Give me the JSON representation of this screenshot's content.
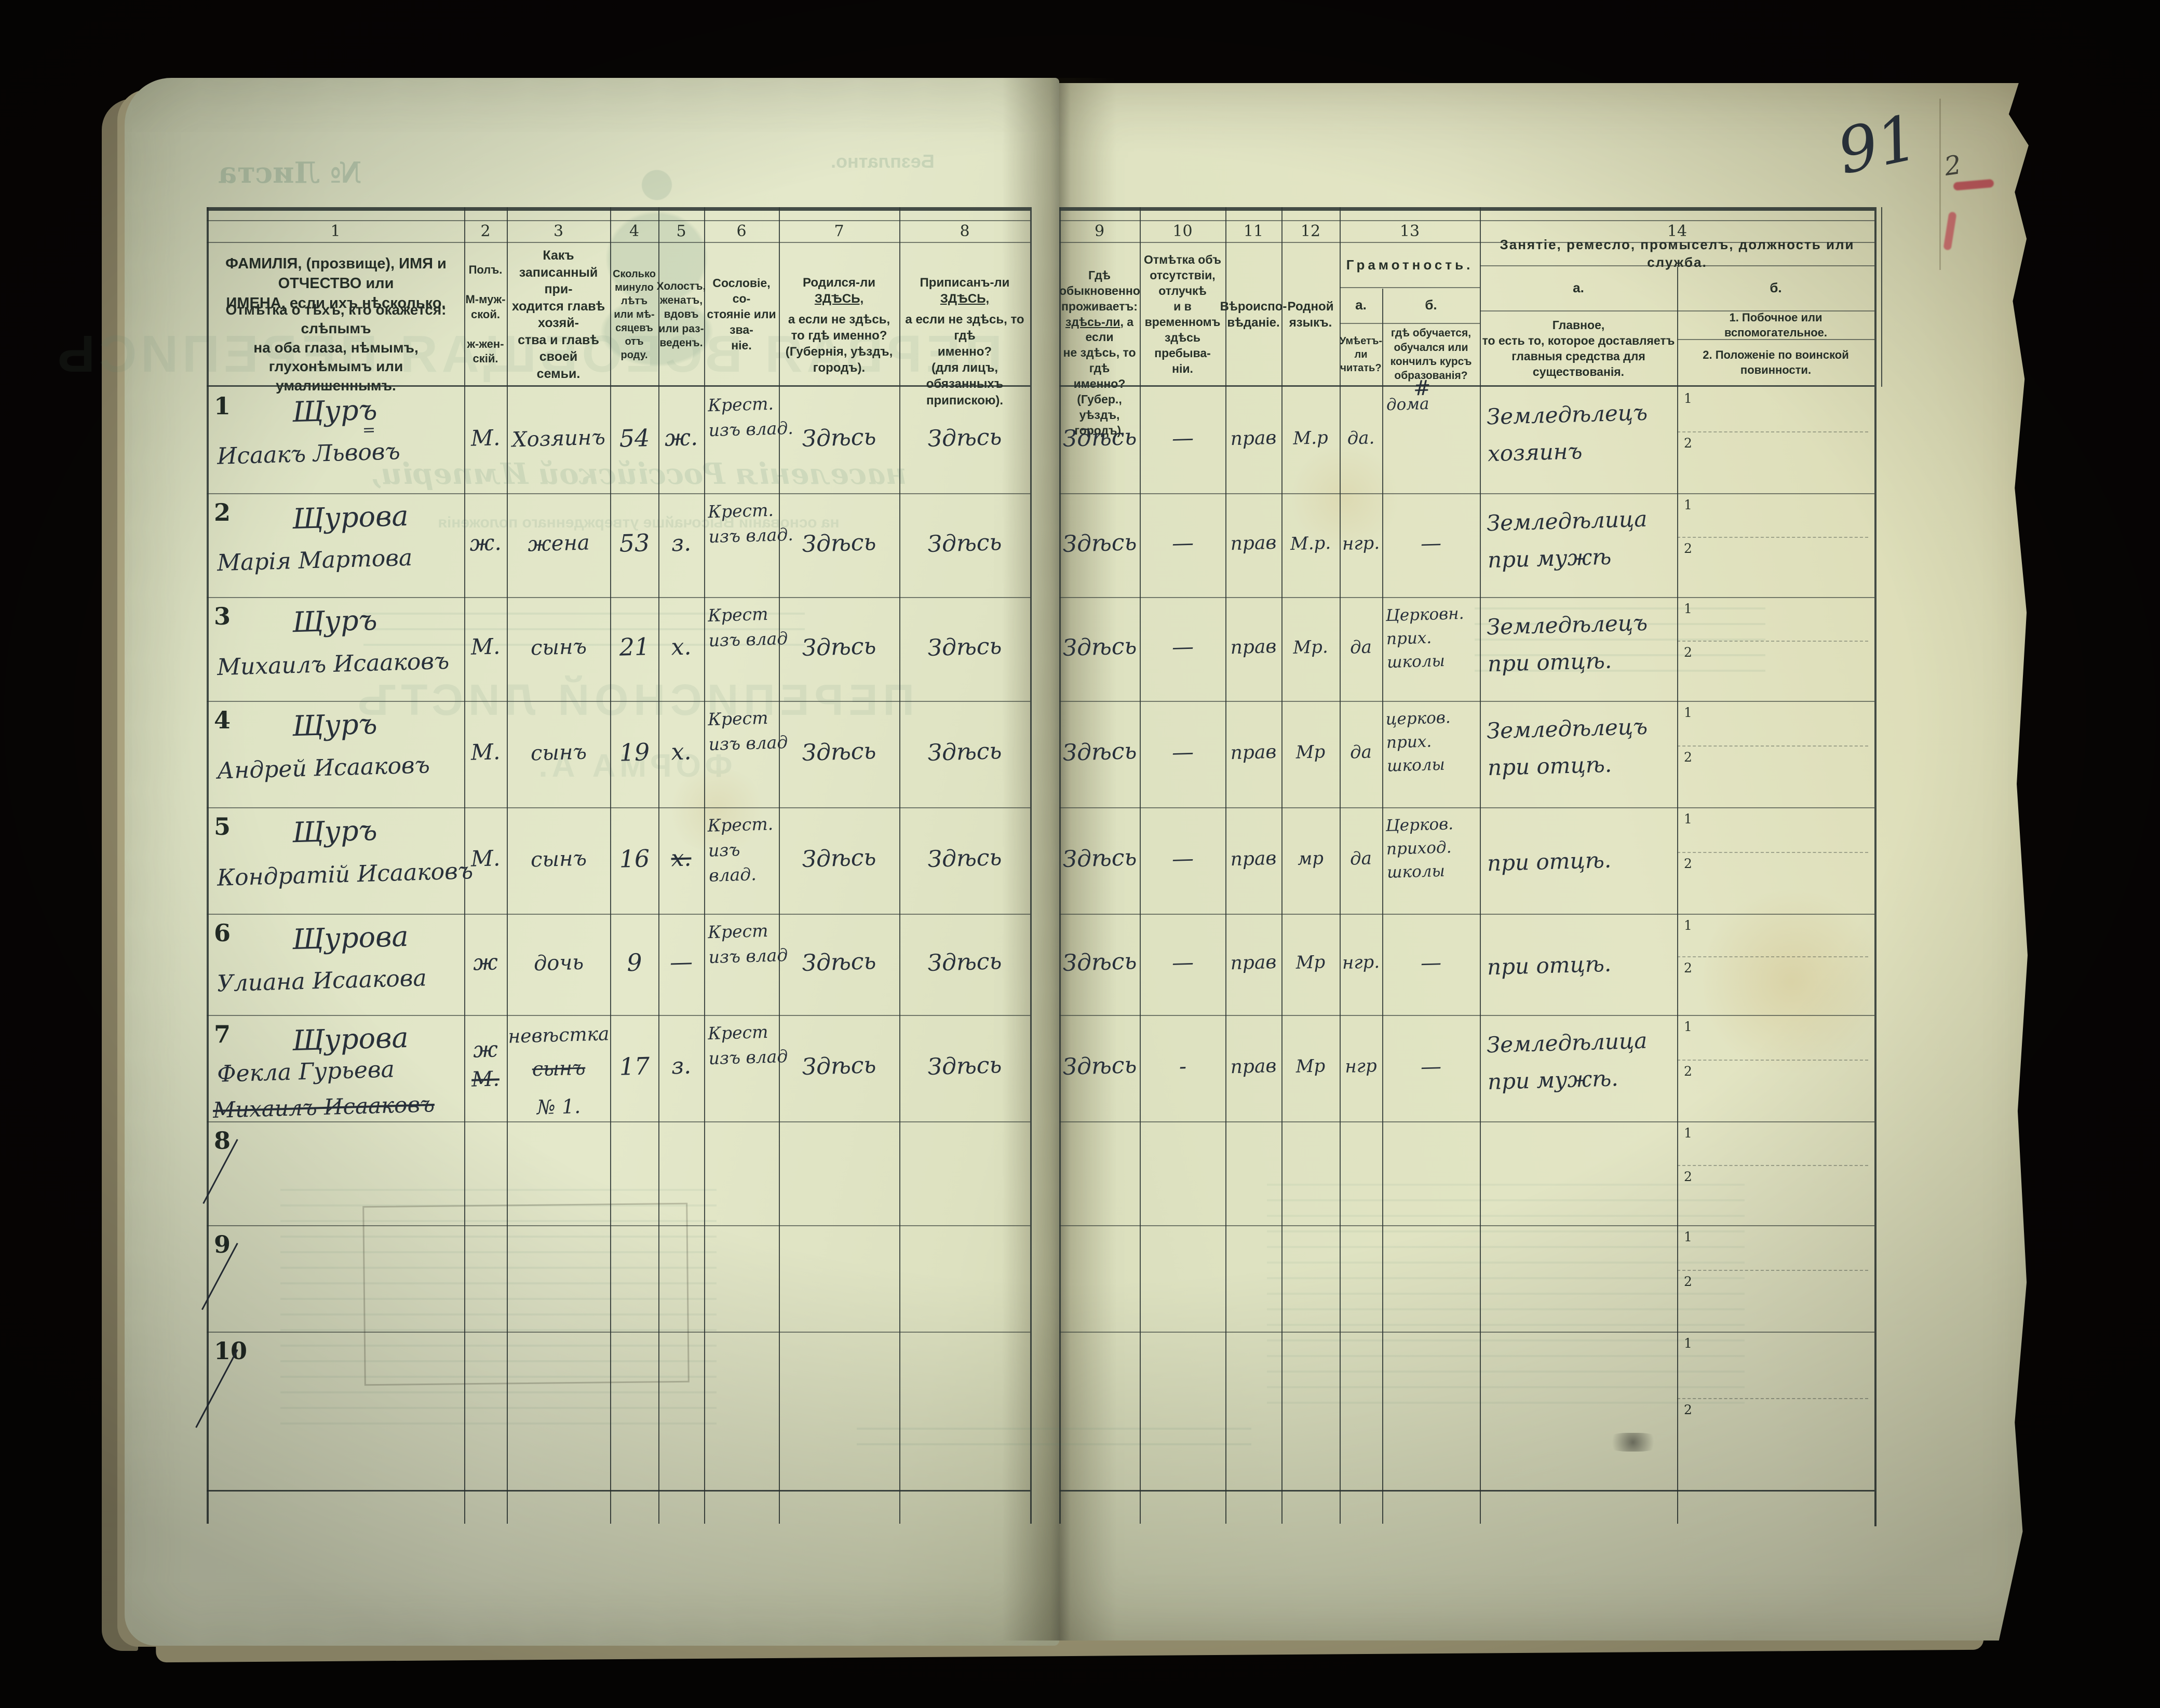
{
  "page": {
    "number": "91",
    "corner_pencil_note": "2"
  },
  "bleedthrough": {
    "sheet_no": "№ Листа",
    "free_of_charge": "Безплатно.",
    "title_big": "ПЕРВАЯ ВСЕОБЩАЯ ПЕРЕПИСЬ",
    "subtitle": "населенія Россійской Имперіи,",
    "subtitle2": "на основаніи Высочайше утвержденнаго положенія",
    "list_title": "ПЕРЕПИСНОЙ ЛИСТЪ",
    "forma": "ФОРМА А."
  },
  "table": {
    "col_numbers": [
      "1",
      "2",
      "3",
      "4",
      "5",
      "6",
      "7",
      "8",
      "9",
      "10",
      "11",
      "12",
      "13",
      "14"
    ],
    "headers": {
      "name_main": "ФАМИЛІЯ, (прозвище), ИМЯ и ОТЧЕСТВО или\nИМЕНА, если ихъ нѣсколько.",
      "name_note": "Отмѣтка о тѣхъ, кто окажется: слѣпымъ\nна оба глаза, нѣмымъ, глухонѣмымъ или\nумалишеннымъ.",
      "sex": "Полъ.\n\nМ-муж-\nской.\n\nж-жен-\nскій.",
      "relation": "Какъ записанный при-\nходится главѣ хозяй-\nства и главѣ своей\nсемьи.",
      "age": "Сколько\nминуло\nлѣтъ\nили мѣ-\nсяцевъ\nотъ роду.",
      "marital": "Холостъ,\nженатъ,\nвдовъ\nили раз-\nведенъ.",
      "estate": "Сословіе, со-\nстояніе или зва-\nніе.",
      "born_pre": "Родился-ли ",
      "born_emph": "ЗДѢСЬ,",
      "born_rest": "а если не здѣсь,\nто гдѣ именно?\n(Губернія, уѣздъ, городъ).",
      "registered_pre": "Приписанъ-ли ",
      "registered_emph": "ЗДѢСЬ,",
      "registered_rest": "а если не здѣсь, то гдѣ\nименно?\n(для лицъ, обязанныхъ\nприпискою).",
      "lives_pre": "Гдѣ обыкновенно\nпроживаетъ:\n",
      "lives_emph": "здѣсь-ли",
      "lives_rest": ", а если\nне здѣсь, то гдѣ\nименно?\n(Губер., уѣздъ, городъ).",
      "absence": "Отмѣтка объ\nотсутствіи, отлучкѣ\nи в временномъ\nздѣсь пребыва-\nніи.",
      "religion": "Вѣроиспо-\nвѣданіе.",
      "language": "Родной\nязыкъ.",
      "literacy_title": "Грамотность.",
      "literacy_a_label": "а.",
      "literacy_b_label": "б.",
      "literacy_a": "Умѣетъ-\nли\nчитать?",
      "literacy_b": "гдѣ обучается,\nобучался или\nкончилъ курсъ\nобразованія?",
      "occupation_title": "Занятіе, ремесло, промыселъ, должность или служба.",
      "occupation_a_label": "а.",
      "occupation_b_label": "б.",
      "occupation_a": "Главное,\nто есть то, которое доставляетъ\nглавныя средства для существованія.",
      "occupation_b1": "1. Побочное или вспомогательное.",
      "occupation_b2": "2. Положеніе по воинской повинности.",
      "military_sub": [
        "1",
        "2"
      ]
    },
    "rows": [
      {
        "n": "1",
        "name1": "Щуръ",
        "name2": "Исаакъ Львовъ",
        "name2_mark": "=",
        "sex": "М.",
        "relation": "Хозяинъ",
        "age": "54",
        "marital": "ж.",
        "estate": "Крест.\nизъ влад.",
        "born": "Здѣсь",
        "registered": "Здѣсь",
        "lives": "Здѣсь",
        "absence": "—",
        "religion": "прав",
        "language": "М.р",
        "read": "да.",
        "education": "дома",
        "education_mark": "#",
        "occupation": "Земледѣлецъ\nхозяинъ"
      },
      {
        "n": "2",
        "name1": "Щурова",
        "name2": "Марія Мартова",
        "sex": "ж.",
        "relation": "жена",
        "age": "53",
        "marital": "з.",
        "estate": "Крест.\nизъ влад.",
        "born": "Здѣсь",
        "registered": "Здѣсь",
        "lives": "Здѣсь",
        "absence": "—",
        "religion": "прав",
        "language": "М.р.",
        "read": "нгр.",
        "education": "—",
        "occupation": "Земледѣлица\nпри мужѣ"
      },
      {
        "n": "3",
        "name1": "Щуръ",
        "name2": "Михаилъ Исааковъ",
        "sex": "М.",
        "relation": "сынъ",
        "age": "21",
        "marital": "х.",
        "estate": "Крест\nизъ влад",
        "born": "Здѣсь",
        "registered": "Здѣсь",
        "lives": "Здѣсь",
        "absence": "—",
        "religion": "прав",
        "language": "Мр.",
        "read": "да",
        "education": "Церковн.\nприх.\nшколы",
        "occupation": "Земледѣлецъ\nпри отцѣ."
      },
      {
        "n": "4",
        "name1": "Щуръ",
        "name2": "Андрей Исааковъ",
        "sex": "М.",
        "relation": "сынъ",
        "age": "19",
        "marital": "х.",
        "estate": "Крест\nизъ влад",
        "born": "Здѣсь",
        "registered": "Здѣсь",
        "lives": "Здѣсь",
        "absence": "—",
        "religion": "прав",
        "language": "Мр",
        "read": "да",
        "education": "церков.\nприх.\nшколы",
        "occupation": "Земледѣлецъ\nпри отцѣ."
      },
      {
        "n": "5",
        "name1": "Щуръ",
        "name2": "Кондратій Исааковъ",
        "sex": "М.",
        "relation": "сынъ",
        "age": "16",
        "marital": "х.",
        "marital_struck": true,
        "estate": "Крест.\nизъ\nвлад.",
        "born": "Здѣсь",
        "registered": "Здѣсь",
        "lives": "Здѣсь",
        "absence": "—",
        "religion": "прав",
        "language": "мр",
        "read": "да",
        "education": "Церков.\nприход.\nшколы",
        "occupation": "при отцѣ."
      },
      {
        "n": "6",
        "name1": "Щурова",
        "name2": "Улиана Исаакова",
        "sex": "ж",
        "relation": "дочь",
        "age": "9",
        "marital": "—",
        "estate": "Крест\nизъ влад",
        "born": "Здѣсь",
        "registered": "Здѣсь",
        "lives": "Здѣсь",
        "absence": "—",
        "religion": "прав",
        "language": "Мр",
        "read": "нгр.",
        "education": "—",
        "occupation": "при отцѣ."
      },
      {
        "n": "7",
        "name1": "Щурова",
        "name2": "Фекла Гурьева",
        "name3_struck": "Михаилъ Исааковъ",
        "sex": "ж",
        "sex_old": "М.",
        "relation": "невѣстка",
        "relation_old": "сынъ",
        "relation_note": "№ 1.",
        "age": "17",
        "marital": "з.",
        "estate": "Крест\nизъ влад",
        "born": "Здѣсь",
        "registered": "Здѣсь",
        "lives": "Здѣсь",
        "absence": "-",
        "religion": "прав",
        "language": "Мр",
        "read": "нгр",
        "education": "—",
        "occupation": "Земледѣлица\nпри мужѣ."
      },
      {
        "n": "8",
        "slash": true
      },
      {
        "n": "9",
        "slash": true
      },
      {
        "n": "10",
        "slash": true
      }
    ]
  }
}
